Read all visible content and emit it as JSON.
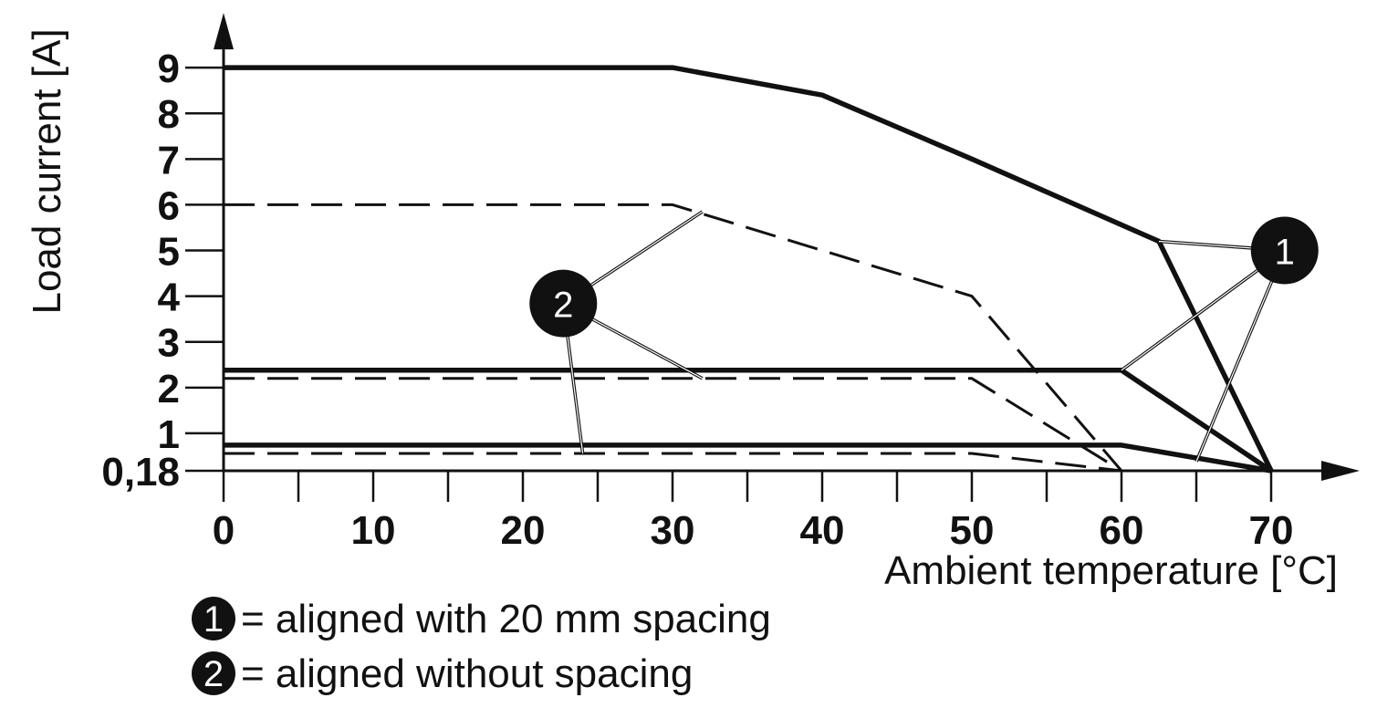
{
  "chart_data": {
    "type": "line",
    "xlabel": "Ambient temperature [°C]",
    "ylabel": "Load current [A]",
    "xlim": [
      0,
      70
    ],
    "ylim": [
      0.18,
      9
    ],
    "x_ticks": [
      0,
      10,
      20,
      30,
      40,
      50,
      60,
      70
    ],
    "x_tick_labels": [
      "0",
      "10",
      "20",
      "30",
      "40",
      "50",
      "60",
      "70"
    ],
    "x_minor_ticks": [
      5,
      15,
      25,
      35,
      45,
      55,
      65
    ],
    "y_ticks": [
      0.18,
      1,
      2,
      3,
      4,
      5,
      6,
      7,
      8,
      9
    ],
    "y_tick_labels": [
      "0,18",
      "1",
      "2",
      "3",
      "4",
      "5",
      "6",
      "7",
      "8",
      "9"
    ],
    "grid": false,
    "legend": {
      "placement": "bottom-left",
      "entries": [
        {
          "marker": "1",
          "text": "= aligned with 20 mm spacing"
        },
        {
          "marker": "2",
          "text": "= aligned without spacing"
        }
      ]
    },
    "series": [
      {
        "group": "1",
        "style": "solid",
        "x": [
          0,
          30,
          40,
          50,
          62.5,
          70
        ],
        "y": [
          9,
          9,
          8.4,
          7,
          5.2,
          0.18
        ]
      },
      {
        "group": "1",
        "style": "solid",
        "x": [
          0,
          60,
          70
        ],
        "y": [
          2.38,
          2.38,
          0.18
        ]
      },
      {
        "group": "1",
        "style": "solid",
        "x": [
          0,
          60,
          70
        ],
        "y": [
          0.74,
          0.74,
          0.18
        ]
      },
      {
        "group": "2",
        "style": "dashed",
        "x": [
          0,
          30,
          50,
          60
        ],
        "y": [
          6,
          6,
          4,
          0.18
        ]
      },
      {
        "group": "2",
        "style": "dashed",
        "x": [
          0,
          50,
          60
        ],
        "y": [
          2.2,
          2.2,
          0.18
        ]
      },
      {
        "group": "2",
        "style": "dashed",
        "x": [
          0,
          50,
          60
        ],
        "y": [
          0.56,
          0.56,
          0.18
        ]
      }
    ],
    "callouts": [
      {
        "marker": "1",
        "x": 70.9,
        "y": 5,
        "targets": [
          [
            62.5,
            5.2
          ],
          [
            60,
            2.38
          ],
          [
            65,
            0.38
          ]
        ]
      },
      {
        "marker": "2",
        "x": 22.7,
        "y": 3.84,
        "targets": [
          [
            32,
            5.85
          ],
          [
            32,
            2.2
          ],
          [
            24,
            0.56
          ]
        ]
      }
    ]
  }
}
